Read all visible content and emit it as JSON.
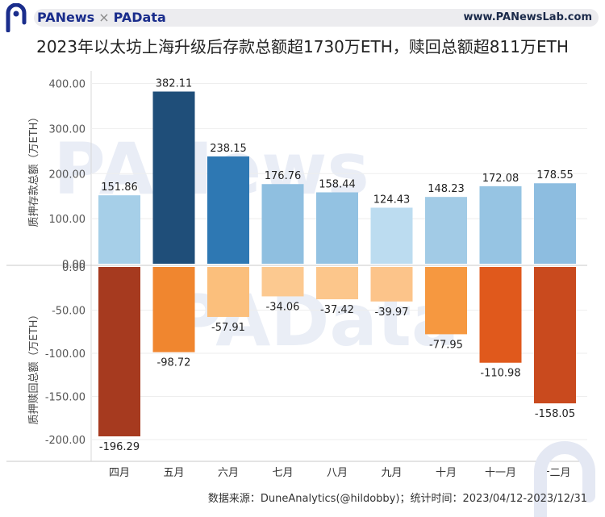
{
  "header": {
    "brand_left": "PANews",
    "brand_cross": "×",
    "brand_right": "PAData",
    "site_url": "www.PANewsLab.com"
  },
  "title": "2023年以太坊上海升级后存款总额超1730万ETH，赎回总额超811万ETH",
  "footer": {
    "source": "数据来源：DuneAnalytics(@hildobby)；统计时间：2023/04/12-2023/12/31"
  },
  "watermarks": [
    "PANews",
    "PAData"
  ],
  "chart_data": {
    "type": "bar",
    "categories": [
      "四月",
      "五月",
      "六月",
      "七月",
      "八月",
      "九月",
      "十月",
      "十一月",
      "十二月"
    ],
    "top": {
      "ylabel": "质押存款总额（万ETH）",
      "ylim": [
        0,
        420
      ],
      "ticks": [
        "400.00",
        "300.00",
        "200.00",
        "100.00",
        "0.00"
      ],
      "tick_values": [
        400,
        300,
        200,
        100,
        0
      ],
      "values": [
        151.86,
        382.11,
        238.15,
        176.76,
        158.44,
        124.43,
        148.23,
        172.08,
        178.55
      ],
      "labels": [
        "151.86",
        "382.11",
        "238.15",
        "176.76",
        "158.44",
        "124.43",
        "148.23",
        "172.08",
        "178.55"
      ],
      "colors": [
        "#a6cfe8",
        "#1f4e79",
        "#2e78b3",
        "#8fbfe0",
        "#93c2e2",
        "#bcdcf0",
        "#a2cbe6",
        "#96c4e3",
        "#8dbde0"
      ]
    },
    "bottom": {
      "ylabel": "质押赎回总额（万ETH）",
      "ylim": [
        -215,
        0
      ],
      "ticks": [
        "0.00",
        "-50.00",
        "-100.00",
        "-150.00",
        "-200.00"
      ],
      "tick_values": [
        0,
        -50,
        -100,
        -150,
        -200
      ],
      "values": [
        -196.29,
        -98.72,
        -57.91,
        -34.06,
        -37.42,
        -39.97,
        -77.95,
        -110.98,
        -158.05
      ],
      "labels": [
        "-196.29",
        "-98.72",
        "-57.91",
        "-34.06",
        "-37.42",
        "-39.97",
        "-77.95",
        "-110.98",
        "-158.05"
      ],
      "colors": [
        "#a63a1f",
        "#f0862f",
        "#fbbf7c",
        "#fcc990",
        "#fcc68b",
        "#fcc48a",
        "#f69840",
        "#e0591c",
        "#c94a1e"
      ]
    },
    "grid": true,
    "legend": "none"
  }
}
